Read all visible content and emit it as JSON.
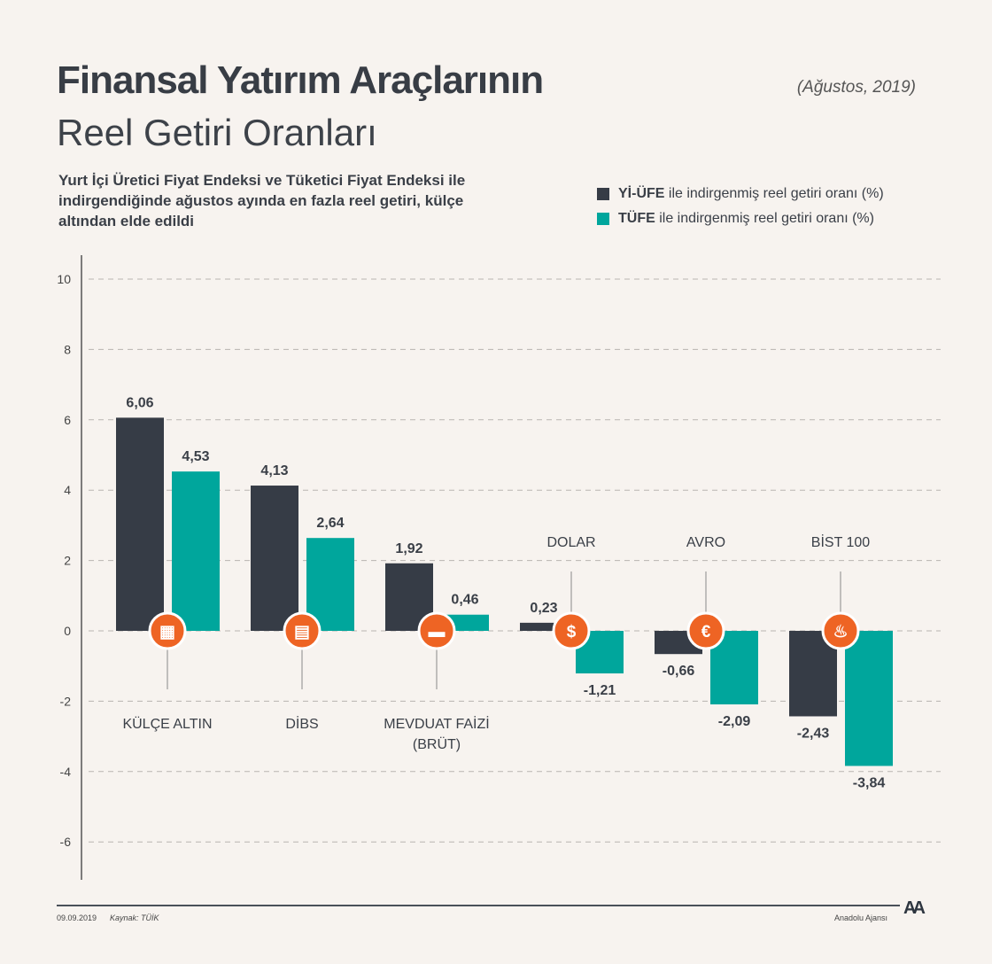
{
  "header": {
    "title_line1": "Finansal Yatırım Araçlarının",
    "title_line2": "Reel Getiri Oranları",
    "date": "(Ağustos, 2019)",
    "subtitle": "Yurt İçi Üretici Fiyat Endeksi ve Tüketici Fiyat Endeksi ile indirgendiğinde ağustos ayında en fazla reel getiri, külçe altından elde edildi"
  },
  "legend": [
    {
      "bold": "Yİ-ÜFE",
      "text": " ile indirgenmiş reel getiri oranı (%)",
      "color": "#363c46"
    },
    {
      "bold": "TÜFE",
      "text": " ile indirgenmiş reel getiri oranı (%)",
      "color": "#00a69c"
    }
  ],
  "footer": {
    "date": "09.09.2019",
    "source": "Kaynak: TÜİK",
    "agency": "Anadolu Ajansı",
    "logo_text": "AA"
  },
  "chart_data": {
    "type": "bar",
    "categories": [
      "KÜLÇE ALTIN",
      "DİBS",
      "MEVDUAT FAİZİ (BRÜT)",
      "DOLAR",
      "AVRO",
      "BİST 100"
    ],
    "category_icons": [
      "gold-bars-icon",
      "document-icon",
      "banknotes-icon",
      "dollar-icon",
      "euro-icon",
      "stock-market-icon"
    ],
    "series": [
      {
        "name": "Yİ-ÜFE ile indirgenmiş reel getiri oranı (%)",
        "color": "#363c46",
        "values": [
          6.06,
          4.13,
          1.92,
          0.23,
          -0.66,
          -2.43
        ],
        "labels": [
          "6,06",
          "4,13",
          "1,92",
          "0,23",
          "-0,66",
          "-2,43"
        ]
      },
      {
        "name": "TÜFE ile indirgenmiş reel getiri oranı (%)",
        "color": "#00a69c",
        "values": [
          4.53,
          2.64,
          0.46,
          -1.21,
          -2.09,
          -3.84
        ],
        "labels": [
          "4,53",
          "2,64",
          "0,46",
          "-1,21",
          "-2,09",
          "-3,84"
        ]
      }
    ],
    "yticks": [
      10,
      8,
      6,
      4,
      2,
      0,
      -2,
      -4,
      -6
    ],
    "ylim": [
      -7,
      10.7
    ],
    "grid": true,
    "icon_color": "#ee6424"
  }
}
